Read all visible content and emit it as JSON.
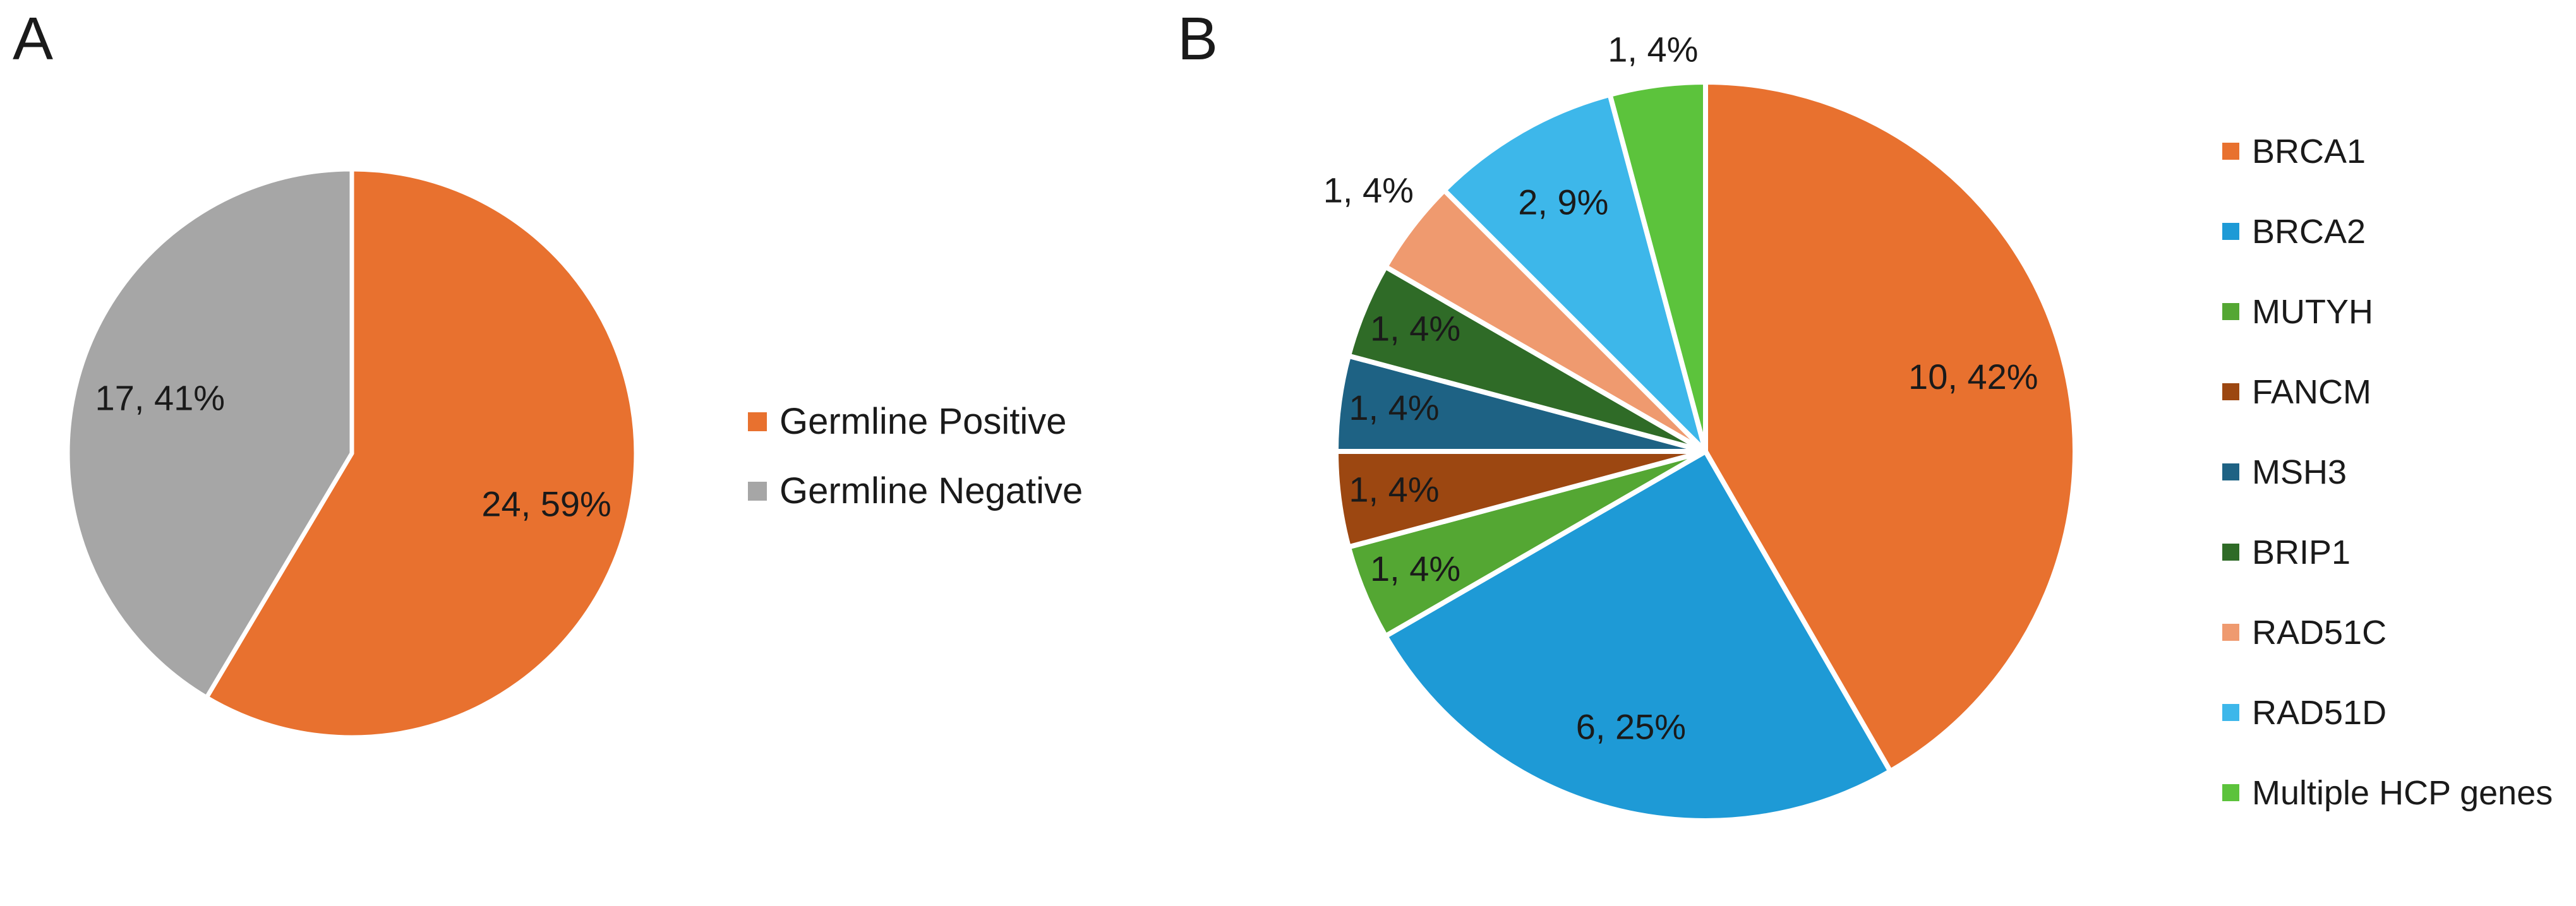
{
  "panels": {
    "a": {
      "letter": "A"
    },
    "b": {
      "letter": "B"
    }
  },
  "chart_data": [
    {
      "type": "pie",
      "panel": "A",
      "title": "",
      "start_angle_deg": 0,
      "direction": "clockwise",
      "total": 41,
      "legend_position": "right",
      "slices": [
        {
          "label": "Germline Positive",
          "value": 24,
          "pct": 59,
          "data_label": "24, 59%",
          "color": "#E8712F",
          "label_placement": "inside",
          "label_r": 0.71
        },
        {
          "label": "Germline Negative",
          "value": 17,
          "pct": 41,
          "data_label": "17, 41%",
          "color": "#A6A6A6",
          "label_placement": "inside",
          "label_r": 0.7
        }
      ]
    },
    {
      "type": "pie",
      "panel": "B",
      "title": "",
      "start_angle_deg": 0,
      "direction": "clockwise",
      "total": 24,
      "legend_position": "right",
      "slices": [
        {
          "label": "BRCA1",
          "value": 10,
          "pct": 42,
          "data_label": "10, 42%",
          "color": "#E8712F",
          "label_placement": "inside",
          "label_r": 0.75
        },
        {
          "label": "BRCA2",
          "value": 6,
          "pct": 25,
          "data_label": "6, 25%",
          "color": "#1E9AD6",
          "label_placement": "inside",
          "label_r": 0.78
        },
        {
          "label": "MUTYH",
          "value": 1,
          "pct": 4,
          "data_label": "1, 4%",
          "color": "#54A733",
          "label_placement": "inside",
          "label_r": 0.85
        },
        {
          "label": "FANCM",
          "value": 1,
          "pct": 4,
          "data_label": "1, 4%",
          "color": "#9C4711",
          "label_placement": "inside",
          "label_r": 0.85
        },
        {
          "label": "MSH3",
          "value": 1,
          "pct": 4,
          "data_label": "1, 4%",
          "color": "#1E6284",
          "label_placement": "inside",
          "label_r": 0.85
        },
        {
          "label": "BRIP1",
          "value": 1,
          "pct": 4,
          "data_label": "1, 4%",
          "color": "#2F6B27",
          "label_placement": "inside",
          "label_r": 0.85
        },
        {
          "label": "RAD51C",
          "value": 1,
          "pct": 4,
          "data_label": "1, 4%",
          "color": "#EF9A6F",
          "label_placement": "outside",
          "label_r": 1.15
        },
        {
          "label": "RAD51D",
          "value": 2,
          "pct": 9,
          "data_label": "2, 9%",
          "color": "#3DB7EA",
          "label_placement": "inside",
          "label_r": 0.77
        },
        {
          "label": "Multiple HCP genes",
          "value": 1,
          "pct": 4,
          "data_label": "1, 4%",
          "color": "#5CC33C",
          "label_placement": "outside",
          "label_r": 1.09
        }
      ]
    }
  ]
}
